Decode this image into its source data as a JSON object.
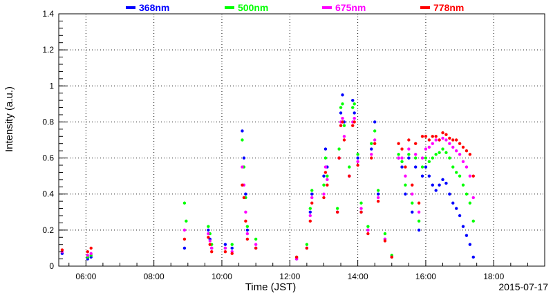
{
  "chart_data": {
    "type": "scatter",
    "title": "",
    "xlabel": "Time (JST)",
    "ylabel": "Intensity (a.u.)",
    "date_label": "2015-07-17",
    "x_unit": "hours (JST, decimal)",
    "xlim": [
      5.2,
      19.5
    ],
    "ylim": [
      0,
      1.4
    ],
    "x_ticks": [
      {
        "value": 6,
        "label": "06:00"
      },
      {
        "value": 8,
        "label": "08:00"
      },
      {
        "value": 10,
        "label": "10:00"
      },
      {
        "value": 12,
        "label": "12:00"
      },
      {
        "value": 14,
        "label": "14:00"
      },
      {
        "value": 16,
        "label": "16:00"
      },
      {
        "value": 18,
        "label": "18:00"
      }
    ],
    "y_ticks": [
      {
        "value": 0,
        "label": "0"
      },
      {
        "value": 0.2,
        "label": "0.2"
      },
      {
        "value": 0.4,
        "label": "0.4"
      },
      {
        "value": 0.6,
        "label": "0.6"
      },
      {
        "value": 0.8,
        "label": "0.8"
      },
      {
        "value": 1.0,
        "label": "1"
      },
      {
        "value": 1.2,
        "label": "1.2"
      },
      {
        "value": 1.4,
        "label": "1.4"
      }
    ],
    "grid": true,
    "legend_position": "top",
    "series": [
      {
        "name": "368nm",
        "color": "#0000ff",
        "points": [
          [
            5.3,
            0.07
          ],
          [
            6.05,
            0.04
          ],
          [
            6.15,
            0.05
          ],
          [
            8.9,
            0.1
          ],
          [
            9.6,
            0.2
          ],
          [
            9.65,
            0.15
          ],
          [
            9.7,
            0.1
          ],
          [
            10.1,
            0.12
          ],
          [
            10.3,
            0.1
          ],
          [
            10.6,
            0.75
          ],
          [
            10.65,
            0.6
          ],
          [
            10.7,
            0.4
          ],
          [
            10.75,
            0.2
          ],
          [
            11.0,
            0.1
          ],
          [
            12.2,
            0.04
          ],
          [
            12.5,
            0.1
          ],
          [
            12.6,
            0.3
          ],
          [
            12.65,
            0.4
          ],
          [
            13.0,
            0.5
          ],
          [
            13.05,
            0.65
          ],
          [
            13.1,
            0.55
          ],
          [
            13.4,
            0.3
          ],
          [
            13.45,
            0.6
          ],
          [
            13.5,
            0.85
          ],
          [
            13.55,
            0.95
          ],
          [
            13.6,
            0.8
          ],
          [
            13.75,
            0.5
          ],
          [
            13.85,
            0.92
          ],
          [
            13.9,
            0.85
          ],
          [
            14.0,
            0.6
          ],
          [
            14.1,
            0.3
          ],
          [
            14.3,
            0.2
          ],
          [
            14.4,
            0.65
          ],
          [
            14.5,
            0.8
          ],
          [
            14.6,
            0.4
          ],
          [
            14.8,
            0.15
          ],
          [
            15.0,
            0.05
          ],
          [
            15.2,
            0.6
          ],
          [
            15.3,
            0.55
          ],
          [
            15.4,
            0.4
          ],
          [
            15.5,
            0.6
          ],
          [
            15.6,
            0.3
          ],
          [
            15.7,
            0.55
          ],
          [
            15.8,
            0.2
          ],
          [
            15.9,
            0.5
          ],
          [
            16.0,
            0.55
          ],
          [
            16.1,
            0.5
          ],
          [
            16.2,
            0.45
          ],
          [
            16.3,
            0.42
          ],
          [
            16.4,
            0.45
          ],
          [
            16.5,
            0.48
          ],
          [
            16.6,
            0.46
          ],
          [
            16.7,
            0.4
          ],
          [
            16.8,
            0.35
          ],
          [
            16.9,
            0.32
          ],
          [
            17.0,
            0.28
          ],
          [
            17.1,
            0.22
          ],
          [
            17.2,
            0.17
          ],
          [
            17.3,
            0.12
          ],
          [
            17.4,
            0.05
          ]
        ]
      },
      {
        "name": "500nm",
        "color": "#00ff00",
        "points": [
          [
            5.3,
            0.08
          ],
          [
            6.05,
            0.05
          ],
          [
            6.15,
            0.06
          ],
          [
            8.9,
            0.35
          ],
          [
            8.95,
            0.25
          ],
          [
            9.6,
            0.22
          ],
          [
            9.65,
            0.18
          ],
          [
            9.7,
            0.12
          ],
          [
            10.1,
            0.1
          ],
          [
            10.3,
            0.12
          ],
          [
            10.6,
            0.7
          ],
          [
            10.65,
            0.55
          ],
          [
            10.7,
            0.38
          ],
          [
            10.75,
            0.22
          ],
          [
            11.0,
            0.15
          ],
          [
            12.2,
            0.05
          ],
          [
            12.5,
            0.12
          ],
          [
            12.6,
            0.32
          ],
          [
            12.65,
            0.42
          ],
          [
            13.0,
            0.45
          ],
          [
            13.05,
            0.6
          ],
          [
            13.1,
            0.5
          ],
          [
            13.4,
            0.32
          ],
          [
            13.45,
            0.65
          ],
          [
            13.5,
            0.88
          ],
          [
            13.55,
            0.9
          ],
          [
            13.6,
            0.78
          ],
          [
            13.75,
            0.55
          ],
          [
            13.85,
            0.88
          ],
          [
            13.9,
            0.9
          ],
          [
            14.0,
            0.62
          ],
          [
            14.1,
            0.35
          ],
          [
            14.3,
            0.22
          ],
          [
            14.4,
            0.68
          ],
          [
            14.5,
            0.75
          ],
          [
            14.6,
            0.42
          ],
          [
            14.8,
            0.18
          ],
          [
            15.0,
            0.06
          ],
          [
            15.2,
            0.62
          ],
          [
            15.3,
            0.58
          ],
          [
            15.4,
            0.45
          ],
          [
            15.5,
            0.62
          ],
          [
            15.6,
            0.35
          ],
          [
            15.7,
            0.6
          ],
          [
            15.8,
            0.25
          ],
          [
            15.9,
            0.55
          ],
          [
            16.0,
            0.6
          ],
          [
            16.1,
            0.58
          ],
          [
            16.2,
            0.6
          ],
          [
            16.3,
            0.62
          ],
          [
            16.4,
            0.63
          ],
          [
            16.5,
            0.65
          ],
          [
            16.6,
            0.63
          ],
          [
            16.7,
            0.6
          ],
          [
            16.8,
            0.55
          ],
          [
            16.9,
            0.52
          ],
          [
            17.0,
            0.5
          ],
          [
            17.1,
            0.45
          ],
          [
            17.2,
            0.4
          ],
          [
            17.3,
            0.35
          ],
          [
            17.4,
            0.25
          ]
        ]
      },
      {
        "name": "675nm",
        "color": "#ff00ff",
        "points": [
          [
            5.3,
            0.08
          ],
          [
            6.05,
            0.06
          ],
          [
            6.15,
            0.07
          ],
          [
            8.9,
            0.2
          ],
          [
            9.6,
            0.18
          ],
          [
            9.65,
            0.14
          ],
          [
            9.7,
            0.1
          ],
          [
            10.1,
            0.1
          ],
          [
            10.3,
            0.08
          ],
          [
            10.6,
            0.55
          ],
          [
            10.65,
            0.45
          ],
          [
            10.7,
            0.3
          ],
          [
            10.75,
            0.18
          ],
          [
            11.0,
            0.12
          ],
          [
            12.2,
            0.04
          ],
          [
            12.5,
            0.1
          ],
          [
            12.6,
            0.28
          ],
          [
            12.65,
            0.38
          ],
          [
            13.0,
            0.4
          ],
          [
            13.05,
            0.55
          ],
          [
            13.1,
            0.48
          ],
          [
            13.4,
            0.3
          ],
          [
            13.45,
            0.6
          ],
          [
            13.5,
            0.8
          ],
          [
            13.55,
            0.82
          ],
          [
            13.6,
            0.72
          ],
          [
            13.75,
            0.5
          ],
          [
            13.85,
            0.8
          ],
          [
            13.9,
            0.82
          ],
          [
            14.0,
            0.58
          ],
          [
            14.1,
            0.32
          ],
          [
            14.3,
            0.2
          ],
          [
            14.4,
            0.62
          ],
          [
            14.5,
            0.7
          ],
          [
            14.6,
            0.38
          ],
          [
            14.8,
            0.15
          ],
          [
            15.0,
            0.05
          ],
          [
            15.2,
            0.6
          ],
          [
            15.3,
            0.6
          ],
          [
            15.4,
            0.5
          ],
          [
            15.5,
            0.65
          ],
          [
            15.6,
            0.4
          ],
          [
            15.7,
            0.62
          ],
          [
            15.8,
            0.3
          ],
          [
            15.9,
            0.6
          ],
          [
            16.0,
            0.65
          ],
          [
            16.1,
            0.66
          ],
          [
            16.2,
            0.68
          ],
          [
            16.3,
            0.7
          ],
          [
            16.4,
            0.7
          ],
          [
            16.5,
            0.71
          ],
          [
            16.6,
            0.7
          ],
          [
            16.7,
            0.68
          ],
          [
            16.8,
            0.66
          ],
          [
            16.9,
            0.64
          ],
          [
            17.0,
            0.62
          ],
          [
            17.1,
            0.58
          ],
          [
            17.2,
            0.55
          ],
          [
            17.3,
            0.5
          ],
          [
            17.4,
            0.38
          ]
        ]
      },
      {
        "name": "778nm",
        "color": "#ff0000",
        "points": [
          [
            5.3,
            0.09
          ],
          [
            6.05,
            0.08
          ],
          [
            6.15,
            0.1
          ],
          [
            8.9,
            0.15
          ],
          [
            9.6,
            0.16
          ],
          [
            9.65,
            0.12
          ],
          [
            9.7,
            0.08
          ],
          [
            10.1,
            0.08
          ],
          [
            10.3,
            0.07
          ],
          [
            10.6,
            0.45
          ],
          [
            10.65,
            0.38
          ],
          [
            10.7,
            0.25
          ],
          [
            10.75,
            0.15
          ],
          [
            11.0,
            0.1
          ],
          [
            12.2,
            0.05
          ],
          [
            12.5,
            0.1
          ],
          [
            12.6,
            0.25
          ],
          [
            12.65,
            0.35
          ],
          [
            13.0,
            0.38
          ],
          [
            13.05,
            0.52
          ],
          [
            13.1,
            0.45
          ],
          [
            13.4,
            0.3
          ],
          [
            13.45,
            0.6
          ],
          [
            13.5,
            0.78
          ],
          [
            13.55,
            0.8
          ],
          [
            13.6,
            0.7
          ],
          [
            13.75,
            0.5
          ],
          [
            13.85,
            0.78
          ],
          [
            13.9,
            0.8
          ],
          [
            14.0,
            0.56
          ],
          [
            14.1,
            0.3
          ],
          [
            14.3,
            0.18
          ],
          [
            14.4,
            0.6
          ],
          [
            14.5,
            0.68
          ],
          [
            14.6,
            0.36
          ],
          [
            14.8,
            0.14
          ],
          [
            15.0,
            0.05
          ],
          [
            15.2,
            0.68
          ],
          [
            15.3,
            0.65
          ],
          [
            15.4,
            0.55
          ],
          [
            15.5,
            0.7
          ],
          [
            15.6,
            0.45
          ],
          [
            15.7,
            0.68
          ],
          [
            15.8,
            0.35
          ],
          [
            15.9,
            0.72
          ],
          [
            16.0,
            0.72
          ],
          [
            16.1,
            0.7
          ],
          [
            16.2,
            0.72
          ],
          [
            16.3,
            0.72
          ],
          [
            16.4,
            0.7
          ],
          [
            16.5,
            0.74
          ],
          [
            16.6,
            0.73
          ],
          [
            16.7,
            0.71
          ],
          [
            16.8,
            0.7
          ],
          [
            16.9,
            0.7
          ],
          [
            17.0,
            0.68
          ],
          [
            17.1,
            0.66
          ],
          [
            17.2,
            0.64
          ],
          [
            17.3,
            0.62
          ],
          [
            17.4,
            0.5
          ]
        ]
      }
    ]
  }
}
